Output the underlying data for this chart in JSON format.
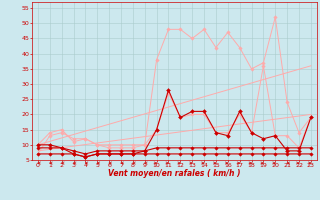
{
  "xlabel": "Vent moyen/en rafales ( km/h )",
  "bg_color": "#cce8ee",
  "grid_color": "#aacccc",
  "xlim": [
    -0.5,
    23.5
  ],
  "ylim": [
    5,
    57
  ],
  "yticks": [
    5,
    10,
    15,
    20,
    25,
    30,
    35,
    40,
    45,
    50,
    55
  ],
  "xticks": [
    0,
    1,
    2,
    3,
    4,
    5,
    6,
    7,
    8,
    9,
    10,
    11,
    12,
    13,
    14,
    15,
    16,
    17,
    18,
    19,
    20,
    21,
    22,
    23
  ],
  "line_dark1_x": [
    0,
    1,
    2,
    3,
    4,
    5,
    6,
    7,
    8,
    9,
    10,
    11,
    12,
    13,
    14,
    15,
    16,
    17,
    18,
    19,
    20,
    21,
    22,
    23
  ],
  "line_dark1_y": [
    7,
    7,
    7,
    7,
    6,
    7,
    7,
    7,
    7,
    7,
    7,
    7,
    7,
    7,
    7,
    7,
    7,
    7,
    7,
    7,
    7,
    7,
    7,
    7
  ],
  "line_dark2_x": [
    0,
    1,
    2,
    3,
    4,
    5,
    6,
    7,
    8,
    9,
    10,
    11,
    12,
    13,
    14,
    15,
    16,
    17,
    18,
    19,
    20,
    21,
    22,
    23
  ],
  "line_dark2_y": [
    9,
    9,
    9,
    8,
    7,
    8,
    8,
    8,
    8,
    8,
    9,
    9,
    9,
    9,
    9,
    9,
    9,
    9,
    9,
    9,
    9,
    9,
    9,
    9
  ],
  "line_dark3_x": [
    0,
    1,
    2,
    3,
    4,
    5,
    6,
    7,
    8,
    9,
    10,
    11,
    12,
    13,
    14,
    15,
    16,
    17,
    18,
    19,
    20,
    21,
    22,
    23
  ],
  "line_dark3_y": [
    10,
    10,
    9,
    7,
    6,
    7,
    7,
    7,
    7,
    8,
    15,
    28,
    19,
    21,
    21,
    14,
    13,
    21,
    14,
    12,
    13,
    8,
    8,
    19
  ],
  "line_dark_color": "#cc0000",
  "line_light1_x": [
    0,
    1,
    2,
    3,
    4,
    5,
    6,
    7,
    8,
    9,
    10,
    11,
    12,
    13,
    14,
    15,
    16,
    17,
    18,
    19,
    20,
    21,
    22,
    23
  ],
  "line_light1_y": [
    10,
    14,
    15,
    11,
    12,
    10,
    10,
    10,
    10,
    10,
    15,
    27,
    19,
    20,
    20,
    14,
    14,
    20,
    14,
    36,
    13,
    13,
    9,
    19
  ],
  "line_light2_x": [
    0,
    1,
    2,
    3,
    4,
    5,
    6,
    7,
    8,
    9,
    10,
    11,
    12,
    13,
    14,
    15,
    16,
    17,
    18,
    19,
    20,
    21,
    22,
    23
  ],
  "line_light2_y": [
    7,
    13,
    14,
    12,
    12,
    10,
    9,
    9,
    9,
    10,
    38,
    48,
    48,
    45,
    48,
    42,
    47,
    42,
    35,
    37,
    52,
    24,
    14,
    19
  ],
  "line_light_color": "#ffaaaa",
  "trend_x": [
    0,
    23
  ],
  "trend_y": [
    10,
    36
  ],
  "trend_color": "#ffaaaa",
  "trend2_x": [
    0,
    23
  ],
  "trend2_y": [
    8,
    20
  ],
  "trend2_color": "#ffaaaa",
  "arrow_dir": [
    -1,
    -1,
    -1,
    -1,
    -1,
    -1,
    -1,
    -1,
    -1,
    -1,
    1,
    1,
    1,
    1,
    1,
    1,
    1,
    1,
    1,
    1,
    1,
    -1,
    1,
    1
  ]
}
